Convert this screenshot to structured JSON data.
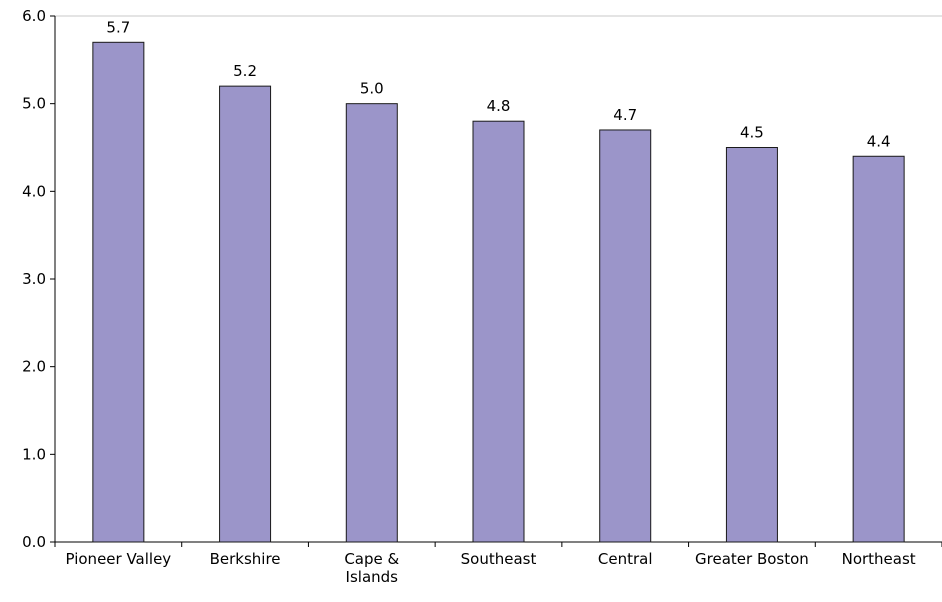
{
  "chart_data": {
    "type": "bar",
    "categories": [
      [
        "Pioneer Valley"
      ],
      [
        "Berkshire"
      ],
      [
        "Cape &",
        "Islands"
      ],
      [
        "Southeast"
      ],
      [
        "Central"
      ],
      [
        "Greater Boston"
      ],
      [
        "Northeast"
      ]
    ],
    "values": [
      5.7,
      5.2,
      5.0,
      4.8,
      4.7,
      4.5,
      4.4
    ],
    "value_labels": [
      "5.7",
      "5.2",
      "5.0",
      "4.8",
      "4.7",
      "4.5",
      "4.4"
    ],
    "y_ticks": [
      "0.0",
      "1.0",
      "2.0",
      "3.0",
      "4.0",
      "5.0",
      "6.0"
    ],
    "ylim": [
      0,
      6
    ],
    "grid": false,
    "legend": "none",
    "colors": {
      "bar_fill": "#9b95c9",
      "bar_stroke": "#1a1a1a",
      "axis": "#000000",
      "top_rule": "#c8c8c8"
    }
  }
}
